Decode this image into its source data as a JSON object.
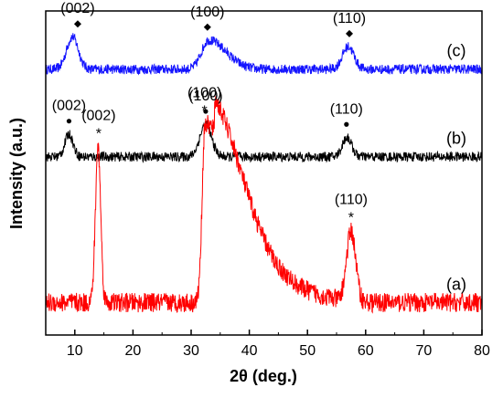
{
  "chart_data": {
    "type": "line",
    "xlabel": "2θ (deg.)",
    "ylabel": "Intensity (a.u.)",
    "xlim": [
      5,
      80
    ],
    "x_ticks": [
      10,
      20,
      30,
      40,
      50,
      60,
      70,
      80
    ],
    "x_tick_labels": [
      "10",
      "20",
      "30",
      "40",
      "50",
      "60",
      "70",
      "80"
    ],
    "y_ticks_shown": false,
    "series": [
      {
        "label": "(c)",
        "color": "#1414ff",
        "marker": "diamond",
        "baseline": 0.82,
        "noise": 0.03,
        "peaks": [
          {
            "x": 9.6,
            "height": 0.1,
            "width": 1.0
          },
          {
            "x": 33.0,
            "height": 0.09,
            "width": 2.0
          },
          {
            "x": 57.0,
            "height": 0.07,
            "width": 1.0
          }
        ],
        "annotations": [
          {
            "x": 10.5,
            "text": "(002)"
          },
          {
            "x": 32.8,
            "text": "(100)"
          },
          {
            "x": 57.2,
            "text": "(110)"
          }
        ]
      },
      {
        "label": "(b)",
        "color": "#000000",
        "marker": "dot",
        "baseline": 0.55,
        "noise": 0.03,
        "peaks": [
          {
            "x": 9.0,
            "height": 0.07,
            "width": 0.7
          },
          {
            "x": 32.5,
            "height": 0.1,
            "width": 1.0
          },
          {
            "x": 56.8,
            "height": 0.06,
            "width": 0.8
          }
        ],
        "annotations": [
          {
            "x": 9.0,
            "text": "(002)"
          },
          {
            "x": 32.5,
            "text": "(100)"
          },
          {
            "x": 56.7,
            "text": "(110)"
          }
        ]
      },
      {
        "label": "(a)",
        "color": "#ff0000",
        "marker": "asterisk",
        "baseline": 0.1,
        "noise": 0.06,
        "peaks": [
          {
            "x": 14.0,
            "height": 0.48,
            "width": 0.45
          },
          {
            "x": 32.4,
            "height": 0.55,
            "width": 0.5
          },
          {
            "x": 57.5,
            "height": 0.22,
            "width": 0.8
          }
        ],
        "annotations": [
          {
            "x": 14.1,
            "text": "(002)"
          },
          {
            "x": 32.3,
            "text": "(100)"
          },
          {
            "x": 57.5,
            "text": "(110)"
          }
        ]
      }
    ]
  }
}
